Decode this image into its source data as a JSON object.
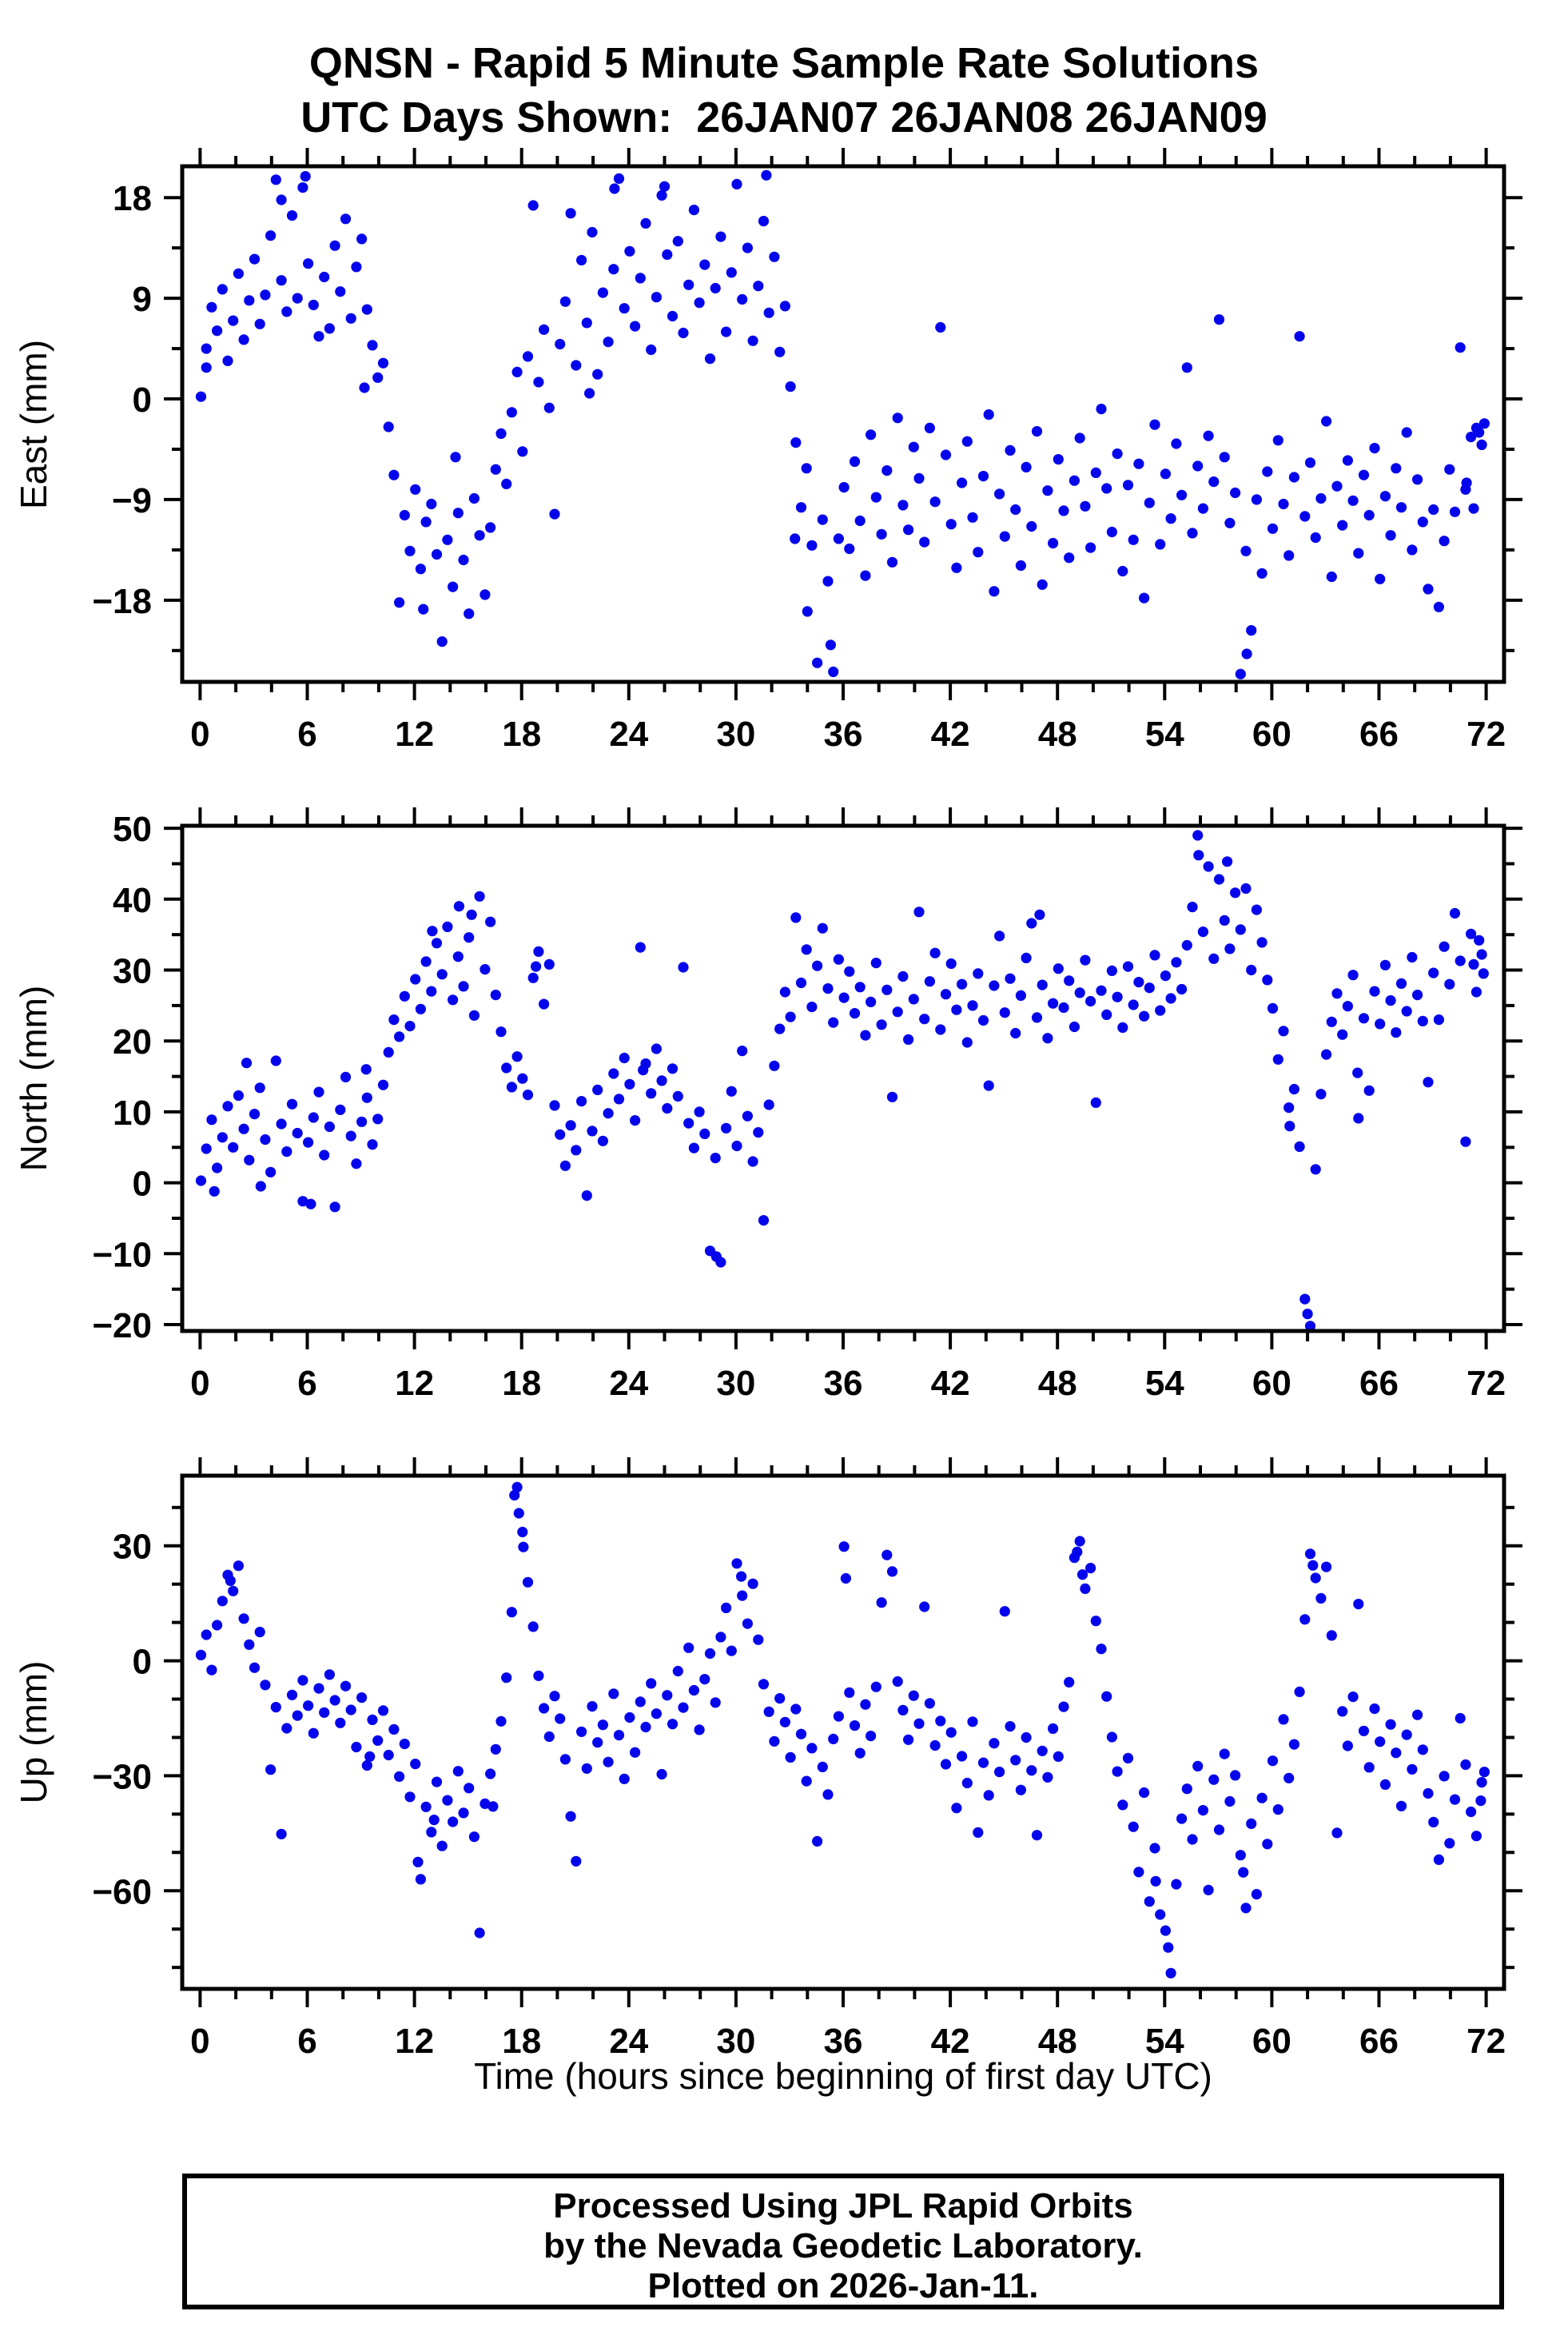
{
  "title": {
    "line1": "QNSN - Rapid 5 Minute Sample Rate Solutions",
    "line2": "UTC Days Shown:  26JAN07 26JAN08 26JAN09"
  },
  "footer": {
    "line1": "Processed Using JPL Rapid Orbits",
    "line2": "by the Nevada Geodetic Laboratory.",
    "line3": "Plotted on 2026-Jan-11."
  },
  "chart_data": {
    "type": "scatter",
    "title": "QNSN - Rapid 5 Minute Sample Rate Solutions",
    "subtitle": "UTC Days Shown:  26JAN07 26JAN08 26JAN09",
    "xlabel": "Time (hours since beginning of first day UTC)",
    "xlim": [
      -1,
      73
    ],
    "xticks": [
      0,
      6,
      12,
      18,
      24,
      30,
      36,
      42,
      48,
      54,
      60,
      66,
      72
    ],
    "xminor_step": 2,
    "grid": false,
    "legend": "none",
    "dot_color": "#0505ec",
    "panels": [
      {
        "ylabel": "East (mm)",
        "ylim": [
          -25.3,
          20.8
        ],
        "yticks": [
          -18,
          -9,
          0,
          9,
          18
        ],
        "yminor_step": 4.5,
        "points": {
          "x0": 0.05,
          "dx": 0.3,
          "y": [
            0.2,
            4.5,
            8.2,
            6.1,
            9.8,
            3.4,
            7.0,
            11.2,
            5.3,
            8.8,
            12.5,
            6.7,
            9.3,
            14.6,
            19.6,
            10.6,
            7.8,
            16.4,
            9.0,
            18.9,
            12.1,
            8.4,
            5.6,
            10.9,
            6.3,
            13.7,
            9.6,
            16.1,
            7.2,
            11.8,
            14.3,
            8.0,
            4.8,
            1.9,
            3.2,
            -2.5,
            -6.8,
            -18.2,
            -10.4,
            -13.6,
            -8.1,
            -15.2,
            -11.0,
            -9.4,
            -13.9,
            -21.7,
            -12.6,
            -16.8,
            -10.2,
            -14.4,
            -19.2,
            -8.9,
            -12.2,
            -17.5,
            -11.5,
            -6.3,
            -3.1,
            -7.6,
            -1.2,
            2.4,
            -4.7,
            3.8,
            17.3,
            1.5,
            6.2,
            -0.8,
            -10.3,
            4.9,
            8.7,
            16.6,
            3.0,
            12.4,
            6.8,
            14.9,
            2.2,
            9.5,
            5.1,
            11.6,
            19.7,
            8.1,
            13.2,
            6.5,
            10.8,
            15.7,
            4.4,
            9.1,
            18.2,
            12.9,
            7.4,
            14.1,
            5.9,
            10.2,
            16.9,
            8.6,
            12.0,
            3.6,
            9.9,
            14.5,
            6.0,
            11.3,
            19.2,
            8.9,
            13.5,
            5.2,
            10.1,
            15.9,
            7.7,
            12.7,
            4.2,
            8.3,
            1.1,
            -3.9,
            -9.7,
            -6.2,
            -13.1,
            -23.6,
            -10.8,
            -16.3,
            -24.4,
            -12.5,
            -7.9,
            -13.4,
            -5.6,
            -10.9,
            -15.8,
            -3.2,
            -8.8,
            -12.1,
            -6.4,
            -14.6,
            -1.7,
            -9.5,
            -11.7,
            -4.3,
            -7.1,
            -12.8,
            -2.6,
            -9.2,
            6.4,
            -5.0,
            -11.2,
            -15.1,
            -7.5,
            -3.8,
            -10.6,
            -13.7,
            -6.9,
            -1.4,
            -17.2,
            -8.5,
            -12.3,
            -4.6,
            -9.9,
            -14.9,
            -6.1,
            -11.4,
            -2.9,
            -16.6,
            -8.2,
            -12.9,
            -5.4,
            -10.0,
            -14.2,
            -7.3,
            -3.5,
            -9.6,
            -13.3,
            -6.6,
            -0.9,
            -8.0,
            -11.9,
            -4.9,
            -15.4,
            -7.7,
            -12.6,
            -5.8,
            -17.8,
            -9.3,
            -2.3,
            -13.0,
            -6.7,
            -10.7,
            -4.0,
            -8.6,
            2.8,
            -12.0,
            -6.0,
            -9.8,
            -3.3,
            -7.4,
            7.1,
            -5.2,
            -11.1,
            -8.4,
            -24.6,
            -13.6,
            -20.7,
            -9.0,
            -15.6,
            -6.5,
            -11.6,
            -3.7,
            -9.4,
            -14.0,
            -7.0,
            5.6,
            -10.5,
            -5.7,
            -12.4,
            -8.9,
            -2.0,
            -15.9,
            -7.8,
            -11.3,
            -5.5,
            -9.1,
            -13.8,
            -6.8,
            -10.4,
            -4.4,
            -16.1,
            -8.7,
            -12.2,
            -6.2,
            -9.7,
            -3.0,
            -13.5,
            -7.2,
            -11.0,
            -17.0,
            -9.9,
            -18.6,
            -12.7,
            -6.3,
            -10.1,
            4.6,
            -8.1,
            -3.4,
            -2.6,
            -4.1
          ]
        },
        "extra_points": [
          [
            0.35,
            2.8
          ],
          [
            4.55,
            17.8
          ],
          [
            5.9,
            19.9
          ],
          [
            9.2,
            1.0
          ],
          [
            12.5,
            -18.8
          ],
          [
            14.3,
            -5.2
          ],
          [
            21.8,
            0.5
          ],
          [
            23.2,
            18.8
          ],
          [
            26.0,
            19.0
          ],
          [
            31.7,
            20.0
          ],
          [
            33.3,
            -12.5
          ],
          [
            34.0,
            -19.0
          ],
          [
            35.3,
            -22.0
          ],
          [
            58.6,
            -22.8
          ],
          [
            70.9,
            -7.5
          ],
          [
            71.3,
            -9.8
          ],
          [
            71.6,
            -3.0
          ],
          [
            71.9,
            -2.2
          ]
        ]
      },
      {
        "ylabel": "North (mm)",
        "ylim": [
          -20.9,
          50.35
        ],
        "yticks": [
          -20,
          -10,
          0,
          10,
          20,
          30,
          40,
          50
        ],
        "yminor_step": 5,
        "points": {
          "x0": 0.05,
          "dx": 0.3,
          "y": [
            0.3,
            4.8,
            8.9,
            2.1,
            6.4,
            10.8,
            5.0,
            12.3,
            7.6,
            3.2,
            9.7,
            13.4,
            6.1,
            1.5,
            17.2,
            8.3,
            4.4,
            11.1,
            7.0,
            -2.6,
            5.7,
            9.2,
            12.8,
            3.9,
            7.9,
            -3.4,
            10.3,
            14.9,
            6.6,
            2.7,
            8.6,
            12.0,
            5.4,
            9.0,
            13.8,
            18.4,
            23.0,
            20.6,
            26.3,
            22.1,
            28.7,
            24.5,
            31.2,
            27.0,
            33.8,
            29.4,
            36.1,
            25.8,
            31.9,
            27.7,
            34.6,
            23.6,
            40.4,
            30.1,
            36.8,
            26.5,
            21.3,
            16.2,
            13.5,
            17.8,
            14.7,
            12.4,
            28.9,
            32.6,
            25.2,
            30.8,
            10.9,
            6.8,
            2.4,
            8.1,
            4.6,
            11.5,
            -1.8,
            7.3,
            13.1,
            5.9,
            9.8,
            15.4,
            11.8,
            17.6,
            13.9,
            8.8,
            33.2,
            16.8,
            12.6,
            18.9,
            14.4,
            10.5,
            16.1,
            12.2,
            30.4,
            8.4,
            4.9,
            10.0,
            6.9,
            -9.6,
            3.5,
            -11.2,
            7.7,
            12.9,
            5.2,
            18.6,
            9.4,
            3.0,
            7.1,
            -5.3,
            11.0,
            16.5,
            21.7,
            26.9,
            23.4,
            37.4,
            28.2,
            32.9,
            24.8,
            30.6,
            35.9,
            27.4,
            22.6,
            31.5,
            26.1,
            29.8,
            23.9,
            27.6,
            20.8,
            25.5,
            31.0,
            22.3,
            27.2,
            12.1,
            24.1,
            29.1,
            20.2,
            25.9,
            38.2,
            23.1,
            28.4,
            32.4,
            21.6,
            26.6,
            30.9,
            24.4,
            28.0,
            19.8,
            25.0,
            29.5,
            22.9,
            13.7,
            27.8,
            34.8,
            24.0,
            28.8,
            21.1,
            26.4,
            31.7,
            36.6,
            23.3,
            27.9,
            20.4,
            25.3,
            30.2,
            24.7,
            28.5,
            22.0,
            26.8,
            31.4,
            25.6,
            11.3,
            27.1,
            23.7,
            29.9,
            26.2,
            21.9,
            30.5,
            25.1,
            28.3,
            23.5,
            27.5,
            32.1,
            24.3,
            29.2,
            26.0,
            31.1,
            27.3,
            33.5,
            38.9,
            49.0,
            35.4,
            44.6,
            31.6,
            42.8,
            37.0,
            33.0,
            40.9,
            35.7,
            41.5,
            30.0,
            38.5,
            33.9,
            28.6,
            24.6,
            17.4,
            21.4,
            10.6,
            13.2,
            5.1,
            -16.4,
            -20.2,
            1.9,
            12.5,
            18.1,
            22.7,
            26.7,
            20.9,
            24.9,
            29.3,
            9.1,
            23.2,
            13.0,
            27.0,
            22.4,
            30.7,
            25.7,
            21.2,
            28.1,
            24.2,
            31.8,
            26.5,
            22.8,
            14.2,
            29.6,
            23.0,
            33.3,
            28.0,
            38.0,
            31.3,
            5.8,
            35.1,
            26.9,
            32.2
          ]
        },
        "extra_points": [
          [
            0.8,
            -1.2
          ],
          [
            2.6,
            16.9
          ],
          [
            3.4,
            -0.5
          ],
          [
            6.2,
            -3.0
          ],
          [
            9.3,
            16.0
          ],
          [
            13.0,
            35.5
          ],
          [
            14.5,
            39.0
          ],
          [
            15.2,
            37.8
          ],
          [
            18.8,
            30.5
          ],
          [
            24.8,
            15.9
          ],
          [
            28.9,
            -10.4
          ],
          [
            47.0,
            37.8
          ],
          [
            55.9,
            46.2
          ],
          [
            57.5,
            45.3
          ],
          [
            61.0,
            8.0
          ],
          [
            62.0,
            -18.5
          ],
          [
            64.8,
            15.5
          ],
          [
            71.3,
            30.8
          ],
          [
            71.6,
            34.2
          ],
          [
            71.85,
            29.5
          ]
        ]
      },
      {
        "ylabel": "Up (mm)",
        "ylim": [
          -85.6,
          48.3
        ],
        "yticks": [
          -60,
          -30,
          0,
          30
        ],
        "yminor_step": 10,
        "points": {
          "x0": 0.05,
          "dx": 0.3,
          "y": [
            1.5,
            6.8,
            -2.4,
            9.3,
            15.6,
            22.4,
            18.2,
            24.8,
            11.0,
            4.2,
            -1.8,
            7.5,
            -6.3,
            -28.4,
            -12.1,
            -45.2,
            -17.6,
            -8.9,
            -14.3,
            -5.1,
            -11.7,
            -18.9,
            -7.2,
            -13.5,
            -3.6,
            -10.3,
            -16.2,
            -6.6,
            -12.8,
            -22.5,
            -9.6,
            -27.3,
            -15.4,
            -20.8,
            -13.0,
            -24.6,
            -17.9,
            -30.2,
            -21.7,
            -35.5,
            -26.9,
            -57.0,
            -38.1,
            -44.7,
            -31.6,
            -48.3,
            -36.4,
            -42.0,
            -28.8,
            -39.7,
            -33.2,
            -45.9,
            -71.0,
            -37.3,
            -29.5,
            -23.1,
            -15.8,
            -4.4,
            12.7,
            45.3,
            33.6,
            20.5,
            8.9,
            -3.9,
            -12.4,
            -19.8,
            -9.2,
            -15.1,
            -25.7,
            -40.6,
            -52.3,
            -18.5,
            -28.1,
            -11.9,
            -21.3,
            -16.7,
            -26.4,
            -8.6,
            -19.4,
            -30.8,
            -14.8,
            -23.9,
            -10.7,
            -17.3,
            -5.9,
            -13.8,
            -29.6,
            -9.0,
            -16.5,
            -2.7,
            -12.2,
            3.4,
            -7.7,
            -18.0,
            -4.8,
            1.9,
            -10.9,
            6.2,
            13.8,
            2.6,
            25.4,
            17.0,
            9.7,
            20.1,
            5.5,
            -6.1,
            -13.3,
            -21.0,
            -9.8,
            -16.0,
            -25.2,
            -12.6,
            -19.1,
            -31.4,
            -22.8,
            -47.1,
            -27.7,
            -34.9,
            -20.4,
            -14.5,
            29.8,
            -8.3,
            -16.9,
            -24.1,
            -11.4,
            -19.6,
            -6.8,
            15.2,
            27.6,
            23.3,
            -5.4,
            -12.9,
            -20.6,
            -9.1,
            -16.4,
            14.1,
            -11.1,
            -22.1,
            -15.7,
            -27.0,
            -18.7,
            -38.4,
            -24.9,
            -31.9,
            -15.9,
            -44.8,
            -26.6,
            -35.1,
            -21.5,
            -29.0,
            12.9,
            -17.1,
            -25.9,
            -33.7,
            -20.0,
            -28.6,
            -45.5,
            -23.5,
            -30.4,
            -17.7,
            -25.0,
            -12.0,
            -5.6,
            26.9,
            31.2,
            18.8,
            24.2,
            10.4,
            3.1,
            -9.3,
            -19.9,
            -28.9,
            -37.6,
            -25.4,
            -43.3,
            -55.1,
            -34.4,
            -62.8,
            -48.9,
            -66.2,
            -70.4,
            -81.5,
            -58.3,
            -41.2,
            -33.4,
            -46.6,
            -27.5,
            -39.0,
            -59.8,
            -31.0,
            -44.1,
            -24.3,
            -36.7,
            -29.9,
            -50.7,
            -64.5,
            -42.5,
            -60.9,
            -35.8,
            -47.8,
            -26.1,
            -38.8,
            -15.3,
            -30.6,
            -21.8,
            -8.1,
            10.8,
            27.9,
            21.6,
            16.3,
            24.5,
            6.6,
            -44.9,
            -13.2,
            -22.2,
            -9.4,
            14.8,
            -18.3,
            -27.8,
            -12.5,
            -21.1,
            -32.3,
            -16.6,
            -24.0,
            -37.9,
            -19.3,
            -28.3,
            -14.1,
            -23.2,
            -34.6,
            -42.1,
            -51.9,
            -30.1,
            -47.6,
            -36.2,
            -15.0,
            -27.1,
            -39.4,
            -45.7,
            -31.7
          ]
        },
        "extra_points": [
          [
            1.7,
            20.9
          ],
          [
            9.5,
            -25.0
          ],
          [
            12.2,
            -52.5
          ],
          [
            13.1,
            -41.5
          ],
          [
            16.4,
            -38.0
          ],
          [
            17.6,
            43.2
          ],
          [
            17.85,
            38.5
          ],
          [
            18.1,
            29.7
          ],
          [
            30.3,
            22.0
          ],
          [
            36.15,
            21.5
          ],
          [
            49.1,
            28.4
          ],
          [
            49.4,
            22.5
          ],
          [
            53.5,
            -57.5
          ],
          [
            54.2,
            -74.8
          ],
          [
            58.4,
            -55.2
          ],
          [
            62.3,
            24.9
          ],
          [
            71.7,
            -36.5
          ],
          [
            71.9,
            -29.0
          ]
        ]
      }
    ]
  }
}
